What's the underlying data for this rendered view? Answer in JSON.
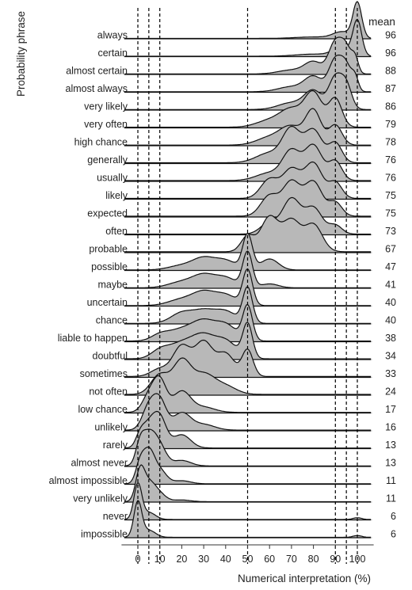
{
  "chart_data": {
    "type": "ridgeline",
    "xlabel": "Numerical interpretation (%)",
    "ylabel": "Probability phrase",
    "mean_header": "mean",
    "xlim": [
      -6,
      106
    ],
    "xticks": [
      0,
      10,
      20,
      30,
      40,
      50,
      60,
      70,
      80,
      90,
      100
    ],
    "reference_lines": [
      0,
      5,
      10,
      50,
      90,
      95,
      100
    ],
    "phrases": [
      {
        "label": "always",
        "mean": 96
      },
      {
        "label": "certain",
        "mean": 96
      },
      {
        "label": "almost certain",
        "mean": 88
      },
      {
        "label": "almost always",
        "mean": 87
      },
      {
        "label": "very likely",
        "mean": 86
      },
      {
        "label": "very often",
        "mean": 79
      },
      {
        "label": "high chance",
        "mean": 78
      },
      {
        "label": "generally",
        "mean": 76
      },
      {
        "label": "usually",
        "mean": 76
      },
      {
        "label": "likely",
        "mean": 75
      },
      {
        "label": "expected",
        "mean": 75
      },
      {
        "label": "often",
        "mean": 73
      },
      {
        "label": "probable",
        "mean": 67
      },
      {
        "label": "possible",
        "mean": 47
      },
      {
        "label": "maybe",
        "mean": 41
      },
      {
        "label": "uncertain",
        "mean": 40
      },
      {
        "label": "chance",
        "mean": 40
      },
      {
        "label": "liable to happen",
        "mean": 38
      },
      {
        "label": "doubtful",
        "mean": 34
      },
      {
        "label": "sometimes",
        "mean": 33
      },
      {
        "label": "not often",
        "mean": 24
      },
      {
        "label": "low chance",
        "mean": 17
      },
      {
        "label": "unlikely",
        "mean": 16
      },
      {
        "label": "rarely",
        "mean": 13
      },
      {
        "label": "almost never",
        "mean": 13
      },
      {
        "label": "almost impossible",
        "mean": 11
      },
      {
        "label": "very unlikely",
        "mean": 11
      },
      {
        "label": "never",
        "mean": 6
      },
      {
        "label": "impossible",
        "mean": 6
      }
    ]
  }
}
